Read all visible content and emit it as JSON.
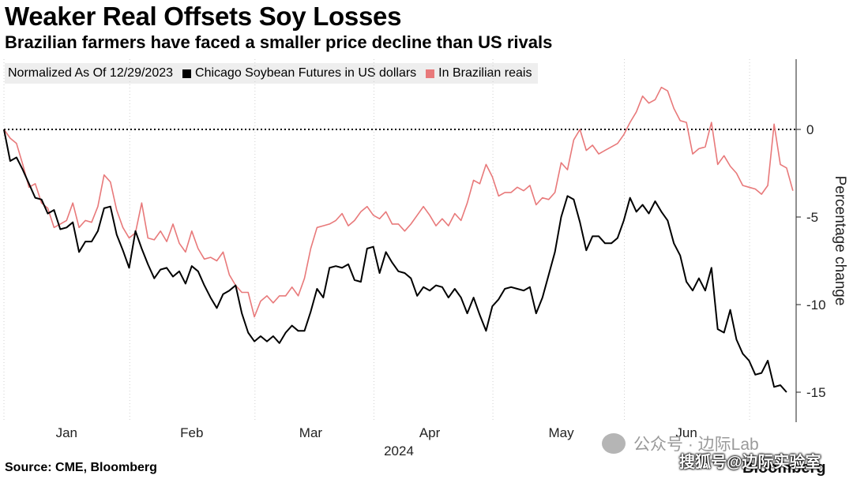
{
  "header": {
    "title": "Weaker Real Offsets Soy Losses",
    "subtitle": "Brazilian farmers have faced a smaller price decline than US rivals"
  },
  "legend": {
    "note": "Normalized As Of 12/29/2023",
    "items": [
      {
        "label": "Chicago Soybean Futures in US dollars",
        "color": "#000000"
      },
      {
        "label": "In Brazilian reais",
        "color": "#e8797a"
      }
    ]
  },
  "footer": {
    "source": "Source: CME, Bloomberg",
    "logo": "Bloomberg"
  },
  "watermarks": {
    "account": "公众号 · 边际Lab",
    "site": "搜狐号@边际实验室"
  },
  "chart_data": {
    "type": "line",
    "title": "Weaker Real Offsets Soy Losses",
    "subtitle": "Brazilian farmers have faced a smaller price decline than US rivals",
    "xlabel": "2024",
    "ylabel": "Percentage change",
    "ylim": [
      -16.5,
      4
    ],
    "yticks": [
      0,
      -5,
      -10,
      -15
    ],
    "ytick_labels": [
      "0",
      "-5",
      "-10",
      "-15"
    ],
    "xlim": [
      0,
      124
    ],
    "xticks": [
      {
        "label": "Jan",
        "x": 10
      },
      {
        "label": "Feb",
        "x": 30
      },
      {
        "label": "Mar",
        "x": 49
      },
      {
        "label": "Apr",
        "x": 68
      },
      {
        "label": "May",
        "x": 89
      },
      {
        "label": "Jun",
        "x": 109
      }
    ],
    "baseline": 0,
    "legend_position": "top-left",
    "series": [
      {
        "name": "Chicago Soybean Futures in US dollars",
        "color": "#000000",
        "values": [
          0,
          -1.8,
          -1.6,
          -2.3,
          -3.1,
          -3.9,
          -4.0,
          -4.8,
          -4.6,
          -5.7,
          -5.6,
          -5.3,
          -7.0,
          -6.4,
          -6.4,
          -5.8,
          -4.5,
          -4.4,
          -6.0,
          -6.9,
          -7.9,
          -5.8,
          -6.8,
          -7.7,
          -8.5,
          -8.0,
          -7.9,
          -8.4,
          -8.1,
          -8.8,
          -7.8,
          -8.1,
          -8.9,
          -9.6,
          -10.2,
          -9.4,
          -9.2,
          -8.9,
          -10.5,
          -11.6,
          -12.1,
          -11.8,
          -12.1,
          -11.8,
          -12.2,
          -11.6,
          -11.2,
          -11.5,
          -11.5,
          -10.4,
          -9.1,
          -9.6,
          -7.9,
          -7.8,
          -7.9,
          -7.7,
          -8.6,
          -8.7,
          -6.8,
          -6.7,
          -8.2,
          -7.0,
          -7.6,
          -8.1,
          -8.2,
          -8.5,
          -9.5,
          -9.0,
          -9.2,
          -8.9,
          -9.0,
          -9.6,
          -9.1,
          -9.6,
          -10.5,
          -9.6,
          -10.6,
          -11.5,
          -10.1,
          -9.7,
          -9.1,
          -9.0,
          -9.1,
          -9.2,
          -9.0,
          -10.5,
          -9.6,
          -8.3,
          -7.0,
          -5.0,
          -3.8,
          -4.0,
          -5.3,
          -6.9,
          -6.1,
          -6.1,
          -6.5,
          -6.5,
          -6.2,
          -5.2,
          -3.9,
          -4.7,
          -4.3,
          -4.8,
          -4.1,
          -4.7,
          -5.2,
          -6.5,
          -7.2,
          -8.7,
          -9.2,
          -8.5,
          -9.2,
          -7.9,
          -11.4,
          -11.6,
          -10.3,
          -12.0,
          -12.8,
          -13.2,
          -14.0,
          -13.9,
          -13.2,
          -14.7,
          -14.6,
          -15.0
        ]
      },
      {
        "name": "In Brazilian reais",
        "color": "#e8797a",
        "values": [
          0,
          -0.5,
          -0.8,
          -2.0,
          -3.3,
          -3.1,
          -4.2,
          -4.5,
          -5.6,
          -5.4,
          -5.2,
          -4.2,
          -5.6,
          -5.2,
          -5.3,
          -4.4,
          -2.6,
          -3.0,
          -4.6,
          -5.6,
          -6.2,
          -5.9,
          -4.2,
          -6.2,
          -6.3,
          -5.8,
          -6.4,
          -5.4,
          -6.5,
          -7.0,
          -5.8,
          -6.8,
          -7.4,
          -7.3,
          -7.5,
          -7.0,
          -8.3,
          -8.9,
          -9.3,
          -9.3,
          -10.7,
          -9.8,
          -9.5,
          -9.9,
          -9.5,
          -9.5,
          -9.0,
          -9.5,
          -8.5,
          -6.8,
          -5.6,
          -5.5,
          -5.4,
          -5.2,
          -4.8,
          -5.5,
          -5.2,
          -4.7,
          -4.4,
          -4.9,
          -5.1,
          -4.7,
          -5.4,
          -5.4,
          -5.8,
          -5.4,
          -4.9,
          -4.4,
          -4.9,
          -5.5,
          -5.1,
          -5.5,
          -4.8,
          -5.2,
          -4.2,
          -2.9,
          -3.1,
          -2.0,
          -2.7,
          -3.8,
          -3.6,
          -3.6,
          -3.3,
          -3.5,
          -3.2,
          -4.3,
          -3.9,
          -4.0,
          -3.6,
          -1.9,
          -2.3,
          -0.6,
          0.0,
          -1.2,
          -0.9,
          -1.4,
          -1.2,
          -1.0,
          -0.8,
          -0.3,
          0.4,
          1.0,
          1.9,
          1.5,
          1.7,
          2.4,
          2.2,
          1.2,
          0.5,
          0.4,
          -1.4,
          -1.1,
          -1.0,
          0.4,
          -2.0,
          -1.5,
          -2.1,
          -2.5,
          -3.2,
          -3.3,
          -3.4,
          -3.7,
          -3.2,
          0.3,
          -2.0,
          -2.2,
          -3.5
        ]
      }
    ]
  }
}
